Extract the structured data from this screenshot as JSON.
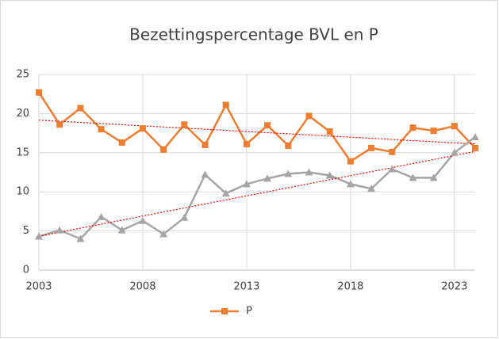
{
  "chart_data": {
    "type": "line",
    "title": "Bezettingspercentage BVL en P",
    "x": [
      2003,
      2004,
      2005,
      2006,
      2007,
      2008,
      2009,
      2010,
      2011,
      2012,
      2013,
      2014,
      2015,
      2016,
      2017,
      2018,
      2019,
      2020,
      2021,
      2022,
      2023,
      2024
    ],
    "series": [
      {
        "name": "P",
        "color": "#ed7d31",
        "marker": "square",
        "values": [
          22.7,
          18.6,
          20.7,
          18.0,
          16.3,
          18.1,
          15.4,
          18.6,
          16.0,
          21.1,
          16.1,
          18.5,
          15.9,
          19.7,
          17.7,
          13.9,
          15.6,
          15.1,
          18.2,
          17.8,
          18.4,
          15.6
        ]
      },
      {
        "color": "#a5a5a5",
        "marker": "triangle",
        "legend": false,
        "values": [
          4.3,
          5.1,
          4.0,
          6.8,
          5.1,
          6.3,
          4.6,
          6.7,
          12.2,
          9.8,
          11.0,
          11.7,
          12.3,
          12.5,
          12.1,
          11.0,
          10.4,
          12.9,
          11.8,
          11.8,
          15.0,
          17.0
        ]
      }
    ],
    "xlim": [
      2003,
      2024
    ],
    "xticks": [
      2003,
      2008,
      2013,
      2018,
      2023
    ],
    "ylim": [
      0,
      25
    ],
    "yticks": [
      0,
      5,
      10,
      15,
      20,
      25
    ],
    "grid": true,
    "legend": "bottom",
    "trendline": true,
    "trendline_color": "#ff0000"
  }
}
